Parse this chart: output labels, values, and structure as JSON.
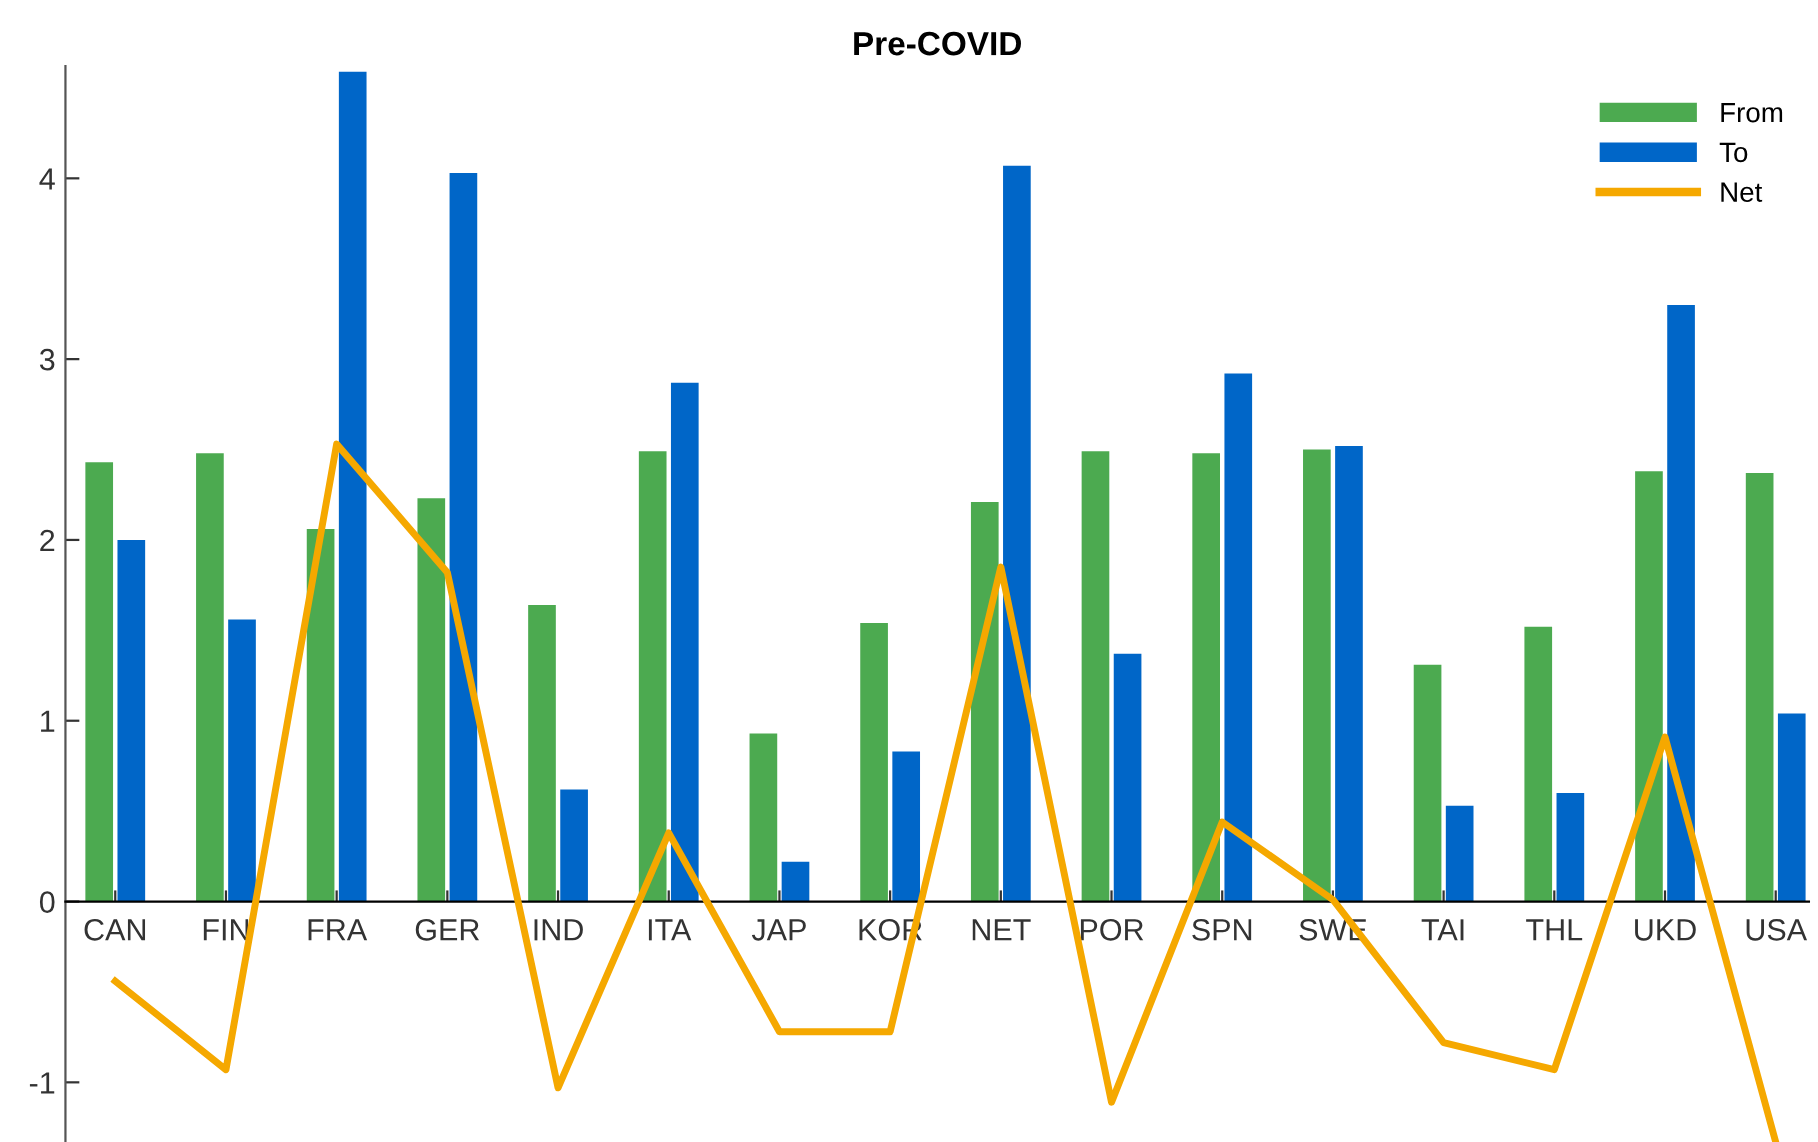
{
  "chart_data": {
    "type": "bar",
    "title": "Pre-COVID",
    "categories": [
      "CAN",
      "FIN",
      "FRA",
      "GER",
      "IND",
      "ITA",
      "JAP",
      "KOR",
      "NET",
      "POR",
      "SPN",
      "SWE",
      "TAI",
      "THL",
      "UKD",
      "USA"
    ],
    "series": [
      {
        "name": "From",
        "color": "#4caa50",
        "values": [
          2.43,
          2.48,
          2.06,
          2.23,
          1.64,
          2.49,
          0.93,
          1.54,
          2.21,
          2.49,
          2.48,
          2.5,
          1.31,
          1.52,
          2.38,
          2.37
        ]
      },
      {
        "name": "To",
        "color": "#0066c8",
        "values": [
          2.0,
          1.56,
          4.59,
          4.03,
          0.62,
          2.87,
          0.22,
          0.83,
          4.07,
          1.37,
          2.92,
          2.52,
          0.53,
          0.6,
          3.3,
          1.04
        ]
      },
      {
        "name": "Net",
        "type": "line",
        "color": "#f5a800",
        "values": [
          -0.44,
          -0.93,
          2.53,
          1.82,
          -1.03,
          0.38,
          -0.72,
          -0.72,
          1.85,
          -1.11,
          0.44,
          0.01,
          -0.78,
          -0.93,
          0.91,
          -1.33
        ]
      }
    ],
    "ylim": [
      -1.33,
      4.62
    ],
    "yticks": [
      -1,
      0,
      1,
      2,
      3,
      4
    ],
    "grid": false,
    "legend": "top right"
  }
}
